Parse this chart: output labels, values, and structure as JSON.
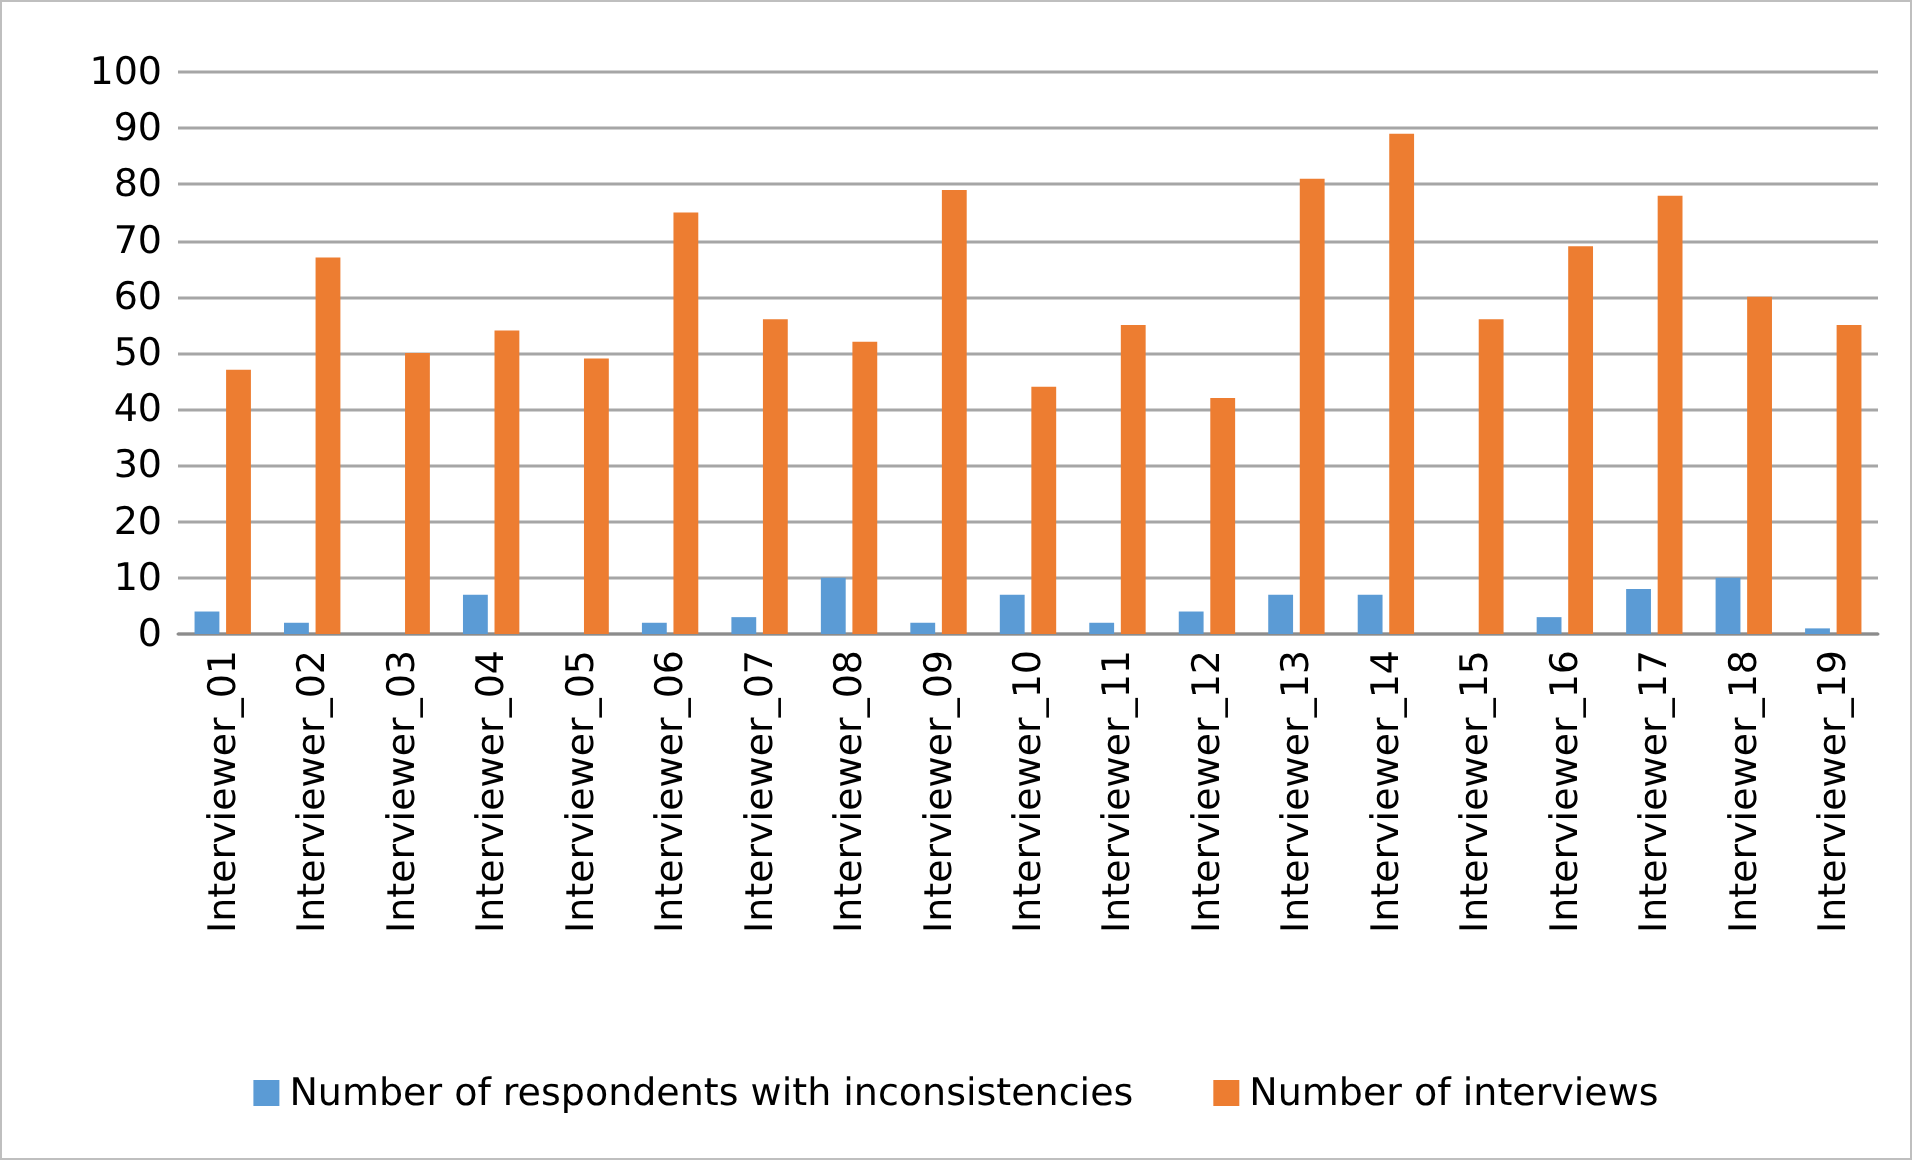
{
  "chart_data": {
    "type": "bar",
    "categories": [
      "Interviewer_01",
      "Interviewer_02",
      "Interviewer_03",
      "Interviewer_04",
      "Interviewer_05",
      "Interviewer_06",
      "Interviewer_07",
      "Interviewer_08",
      "Interviewer_09",
      "Interviewer_10",
      "Interviewer_11",
      "Interviewer_12",
      "Interviewer_13",
      "Interviewer_14",
      "Interviewer_15",
      "Interviewer_16",
      "Interviewer_17",
      "Interviewer_18",
      "Interviewer_19"
    ],
    "series": [
      {
        "name": "Number of respondents with inconsistencies",
        "color": "#5b9bd5",
        "values": [
          4,
          2,
          0,
          7,
          0,
          2,
          3,
          10,
          2,
          7,
          2,
          4,
          7,
          7,
          0,
          3,
          8,
          10,
          1
        ]
      },
      {
        "name": "Number of interviews",
        "color": "#ed7d31",
        "values": [
          47,
          67,
          50,
          54,
          49,
          75,
          56,
          52,
          79,
          44,
          55,
          42,
          81,
          89,
          56,
          69,
          78,
          60,
          55
        ]
      }
    ],
    "ylim": [
      0,
      100
    ],
    "yticks": [
      0,
      10,
      20,
      30,
      40,
      50,
      60,
      70,
      80,
      90,
      100
    ],
    "grid": "y",
    "legend": "bottom"
  }
}
